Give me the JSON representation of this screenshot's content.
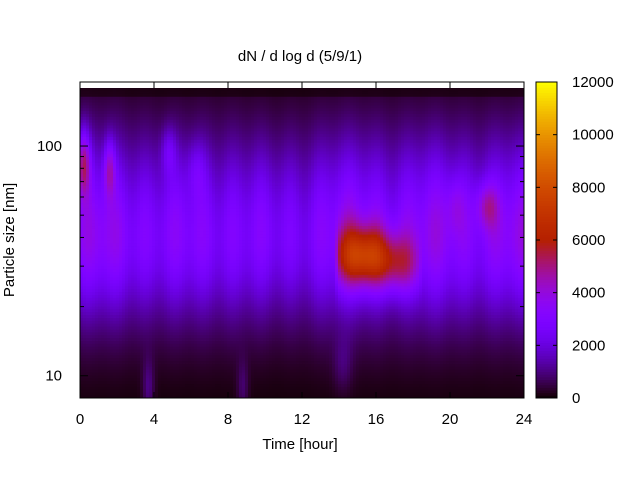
{
  "chart_data": {
    "type": "heatmap",
    "title": "dN / d log d (5/9/1)",
    "xlabel": "Time [hour]",
    "ylabel": "Particle size [nm]",
    "xlim": [
      0,
      24
    ],
    "ylim": [
      8,
      190
    ],
    "y_scale": "log",
    "x_ticks": [
      0,
      4,
      8,
      12,
      16,
      20,
      24
    ],
    "y_ticks": [
      10,
      100
    ],
    "colorbar": {
      "range": [
        0,
        12000
      ],
      "ticks": [
        0,
        2000,
        4000,
        6000,
        8000,
        10000,
        12000
      ],
      "colormap": "gnuplot-pm3d",
      "position": "right"
    },
    "features": [
      {
        "label": "baseline",
        "x": [
          0,
          24
        ],
        "y_nm": 45,
        "value": 2800
      },
      {
        "label": "growth-event",
        "x_center": 15.3,
        "y_center_nm": 33,
        "peak_value": 7500
      },
      {
        "label": "early-mode",
        "x_center": 0.2,
        "y_center_nm": 85,
        "peak_value": 6000
      },
      {
        "label": "early-mode-2",
        "x_center": 1.6,
        "y_center_nm": 80,
        "peak_value": 5200
      },
      {
        "label": "evening-mode",
        "x_center": 22.0,
        "y_center_nm": 55,
        "peak_value": 5200
      }
    ],
    "grid": false,
    "legend": "none"
  }
}
